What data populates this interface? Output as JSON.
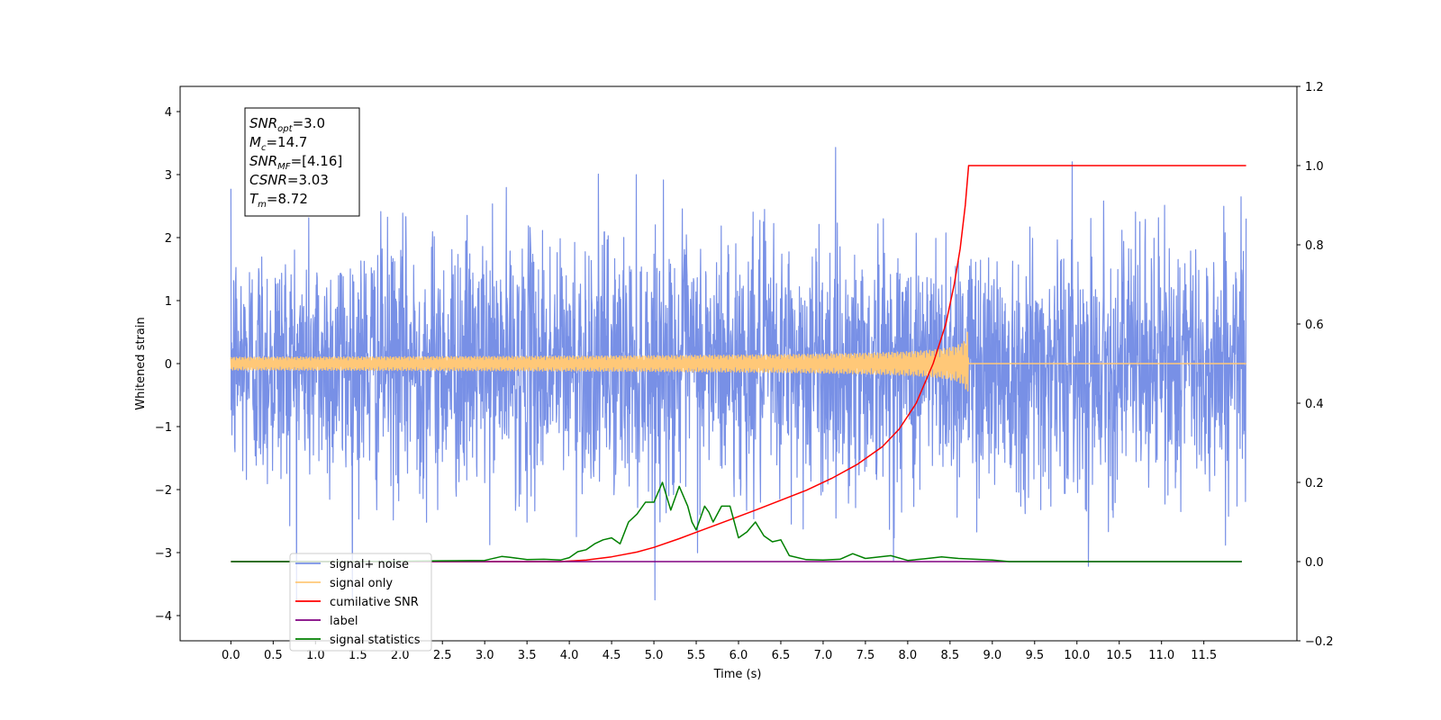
{
  "chart_data": {
    "type": "line",
    "title": "",
    "xlabel": "Time (s)",
    "ylabel": "Whitened strain",
    "y2label": "",
    "xlim": [
      -0.6,
      12.6
    ],
    "ylim": [
      -4.4,
      4.4
    ],
    "y2lim": [
      -0.2,
      1.2
    ],
    "x_ticks": [
      0.0,
      0.5,
      1.0,
      1.5,
      2.0,
      2.5,
      3.0,
      3.5,
      4.0,
      4.5,
      5.0,
      5.5,
      6.0,
      6.5,
      7.0,
      7.5,
      8.0,
      8.5,
      9.0,
      9.5,
      10.0,
      10.5,
      11.0,
      11.5
    ],
    "x_tick_labels": [
      "0.0",
      "0.5",
      "1.0",
      "1.5",
      "2.0",
      "2.5",
      "3.0",
      "3.5",
      "4.0",
      "4.5",
      "5.0",
      "5.5",
      "6.0",
      "6.5",
      "7.0",
      "7.5",
      "8.0",
      "8.5",
      "9.0",
      "9.5",
      "10.0",
      "10.5",
      "11.0",
      "11.5"
    ],
    "y_ticks": [
      -4,
      -3,
      -2,
      -1,
      0,
      1,
      2,
      3,
      4
    ],
    "y_tick_labels": [
      "−4",
      "−3",
      "−2",
      "−1",
      "0",
      "1",
      "2",
      "3",
      "4"
    ],
    "y2_ticks": [
      -0.2,
      0.0,
      0.2,
      0.4,
      0.6,
      0.8,
      1.0,
      1.2
    ],
    "y2_tick_labels": [
      "−0.2",
      "0.0",
      "0.2",
      "0.4",
      "0.6",
      "0.8",
      "1.0",
      "1.2"
    ],
    "grid": false,
    "legend_position": "bottom-left",
    "annotation": {
      "lines": [
        {
          "main": "SNR",
          "sub": "opt",
          "value": "=3.0"
        },
        {
          "main": "M",
          "sub": "c",
          "value": "=14.7"
        },
        {
          "main": "SNR",
          "sub": "MF",
          "value": "=[4.16]"
        },
        {
          "main": "CSNR",
          "sub": "",
          "value": "=3.03"
        },
        {
          "main": "T",
          "sub": "m",
          "value": "=8.72"
        }
      ]
    },
    "series": [
      {
        "name": "signal+ noise",
        "axis": "left",
        "color": "#7890e6",
        "kind": "noise",
        "x_range": [
          0.0,
          12.0
        ],
        "sigma": 1.0
      },
      {
        "name": "signal only",
        "axis": "left",
        "color": "#ffc878",
        "kind": "chirp",
        "x_range": [
          0.0,
          12.0
        ],
        "merger_time": 8.72,
        "peak_amplitude": 0.55
      },
      {
        "name": "cumilative SNR",
        "axis": "right",
        "color": "#ff0000",
        "x": [
          0.0,
          3.9,
          4.2,
          4.5,
          4.8,
          5.0,
          5.3,
          5.6,
          5.9,
          6.2,
          6.5,
          6.8,
          7.1,
          7.4,
          7.7,
          7.9,
          8.1,
          8.3,
          8.45,
          8.55,
          8.62,
          8.68,
          8.72,
          12.0
        ],
        "y": [
          0.0,
          0.0,
          0.004,
          0.012,
          0.024,
          0.036,
          0.058,
          0.082,
          0.106,
          0.13,
          0.155,
          0.18,
          0.21,
          0.245,
          0.29,
          0.335,
          0.4,
          0.5,
          0.6,
          0.7,
          0.79,
          0.9,
          1.0,
          1.0
        ]
      },
      {
        "name": "label",
        "axis": "right",
        "color": "#800080",
        "x": [
          0.0,
          11.95
        ],
        "y": [
          0.0,
          0.0
        ]
      },
      {
        "name": "signal statistics",
        "axis": "right",
        "color": "#008000",
        "x": [
          0.0,
          0.5,
          1.0,
          1.5,
          2.0,
          2.5,
          3.0,
          3.2,
          3.3,
          3.5,
          3.7,
          3.9,
          4.0,
          4.1,
          4.2,
          4.3,
          4.4,
          4.5,
          4.6,
          4.7,
          4.8,
          4.9,
          5.0,
          5.1,
          5.2,
          5.3,
          5.4,
          5.45,
          5.5,
          5.6,
          5.65,
          5.7,
          5.8,
          5.9,
          6.0,
          6.1,
          6.2,
          6.3,
          6.4,
          6.5,
          6.6,
          6.8,
          7.0,
          7.2,
          7.35,
          7.5,
          7.8,
          8.0,
          8.2,
          8.4,
          8.6,
          8.8,
          9.0,
          9.2,
          9.5,
          10.0,
          11.0,
          11.95
        ],
        "y": [
          0.0,
          0.0,
          0.0,
          0.0,
          0.001,
          0.002,
          0.003,
          0.013,
          0.011,
          0.005,
          0.006,
          0.004,
          0.01,
          0.025,
          0.03,
          0.045,
          0.055,
          0.06,
          0.045,
          0.1,
          0.12,
          0.15,
          0.15,
          0.2,
          0.13,
          0.19,
          0.14,
          0.1,
          0.08,
          0.14,
          0.125,
          0.1,
          0.14,
          0.14,
          0.06,
          0.075,
          0.1,
          0.065,
          0.05,
          0.055,
          0.015,
          0.005,
          0.004,
          0.006,
          0.02,
          0.008,
          0.015,
          0.003,
          0.007,
          0.012,
          0.008,
          0.006,
          0.004,
          0.0,
          0.0,
          0.0,
          0.0,
          0.0
        ]
      }
    ]
  }
}
